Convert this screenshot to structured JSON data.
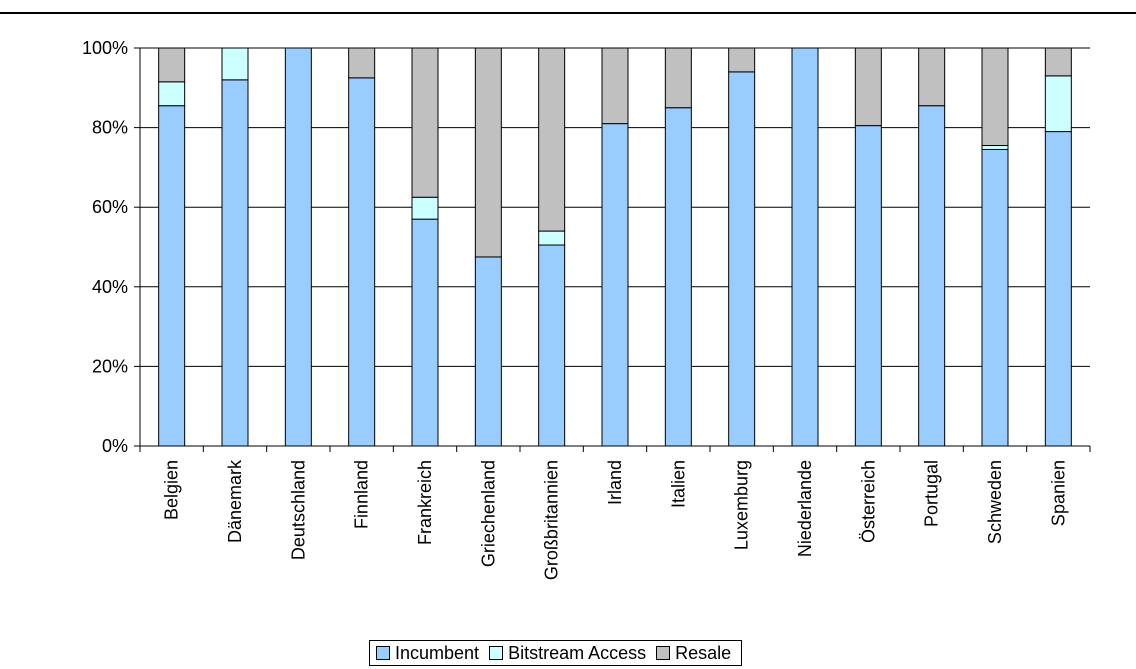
{
  "chart_data": {
    "type": "bar",
    "stacked": true,
    "categories": [
      "Belgien",
      "Dänemark",
      "Deutschland",
      "Finnland",
      "Frankreich",
      "Griechenland",
      "Großbritannien",
      "Irland",
      "Italien",
      "Luxemburg",
      "Niederlande",
      "Österreich",
      "Portugal",
      "Schweden",
      "Spanien"
    ],
    "series": [
      {
        "name": "Incumbent",
        "color": "#99ccff",
        "values": [
          85.5,
          92,
          100,
          92.5,
          57,
          47.5,
          50.5,
          81,
          85,
          94,
          100,
          80.5,
          85.5,
          74.5,
          79
        ]
      },
      {
        "name": "Bitstream Access",
        "color": "#ccffff",
        "values": [
          6,
          8,
          0,
          0,
          5.5,
          0,
          3.5,
          0,
          0,
          0,
          0,
          0,
          0,
          1,
          14
        ]
      },
      {
        "name": "Resale",
        "color": "#c0c0c0",
        "values": [
          8.5,
          0,
          0,
          7.5,
          37.5,
          52.5,
          46,
          19,
          15,
          6,
          0,
          19.5,
          14.5,
          24.5,
          7
        ]
      }
    ],
    "ylim": [
      0,
      100
    ],
    "yticks": [
      "0%",
      "20%",
      "40%",
      "60%",
      "80%",
      "100%"
    ],
    "ytick_values": [
      0,
      20,
      40,
      60,
      80,
      100
    ],
    "grid": true,
    "legend_position": "bottom"
  }
}
